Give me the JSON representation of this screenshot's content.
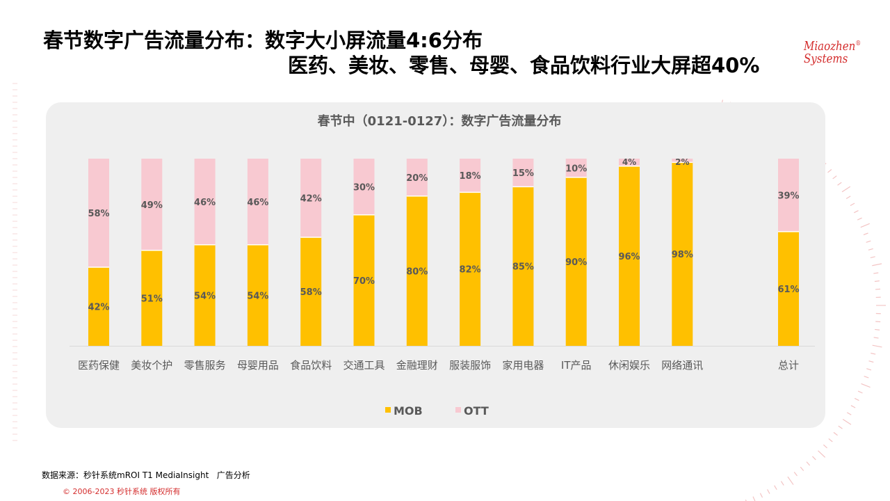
{
  "title": {
    "line1": "春节数字广告流量分布：数字大小屏流量4:6分布",
    "line2": "医药、美妆、零售、母婴、食品饮料行业大屏超40%"
  },
  "logo": {
    "line1": "Miaozhen",
    "mark": "®",
    "line2": "Systems"
  },
  "footer": {
    "source": "数据来源：秒针系统mROI T1 MediaInsight   广告分析",
    "copyright": "© 2006-2023 秒针系统 版权所有"
  },
  "colors": {
    "mob": "#FFC000",
    "ott": "#F8C9D1",
    "accent": "#D42D2D"
  },
  "chart_data": {
    "type": "bar",
    "stacked": true,
    "percent_stacked": true,
    "title": "春节中（0121-0127）：数字广告流量分布",
    "categories": [
      "医药保健",
      "美妆个护",
      "零售服务",
      "母婴用品",
      "食品饮料",
      "交通工具",
      "金融理财",
      "服装服饰",
      "家用电器",
      "IT产品",
      "休闲娱乐",
      "网络通讯",
      "总计"
    ],
    "series": [
      {
        "name": "MOB",
        "values": [
          42,
          51,
          54,
          54,
          58,
          70,
          80,
          82,
          85,
          90,
          96,
          98,
          61
        ],
        "labels": [
          "42%",
          "51%",
          "54%",
          "54%",
          "58%",
          "70%",
          "80%",
          "82%",
          "85%",
          "90%",
          "96%",
          "98%",
          "61%"
        ]
      },
      {
        "name": "OTT",
        "values": [
          58,
          49,
          46,
          46,
          42,
          30,
          20,
          18,
          15,
          10,
          4,
          2,
          39
        ],
        "labels": [
          "58%",
          "49%",
          "46%",
          "46%",
          "42%",
          "30%",
          "20%",
          "18%",
          "15%",
          "10%",
          "4%",
          "2%",
          "39%"
        ]
      }
    ],
    "ylim": [
      0,
      100
    ],
    "legend_position": "bottom",
    "grid": false
  }
}
